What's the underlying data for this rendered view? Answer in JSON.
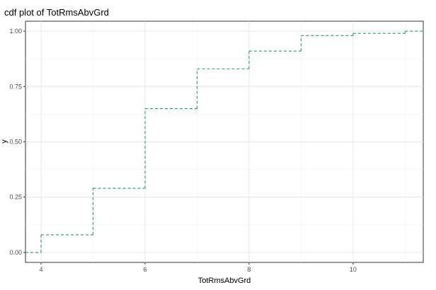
{
  "chart_data": {
    "type": "line",
    "title": "cdf plot of TotRmsAbvGrd",
    "xlabel": "TotRmsAbvGrd",
    "ylabel": "y",
    "xlim": [
      3.7,
      11.35
    ],
    "ylim": [
      -0.045,
      1.045
    ],
    "x_ticks": [
      4,
      6,
      8,
      10
    ],
    "y_ticks": [
      0.0,
      0.25,
      0.5,
      0.75,
      1.0
    ],
    "x_tick_labels": [
      "4",
      "6",
      "8",
      "10"
    ],
    "y_tick_labels": [
      "0.00",
      "0.25",
      "0.50",
      "0.75",
      "1.00"
    ],
    "grid": true,
    "step": true,
    "line_style": "dashed",
    "series": [
      {
        "x": [
          3.7,
          4,
          5,
          6,
          7,
          8,
          9,
          10,
          11,
          11.35
        ],
        "y": [
          0.0,
          0.08,
          0.29,
          0.65,
          0.83,
          0.91,
          0.98,
          0.99,
          1.0,
          1.0
        ],
        "color": "#1b9e77"
      }
    ]
  }
}
